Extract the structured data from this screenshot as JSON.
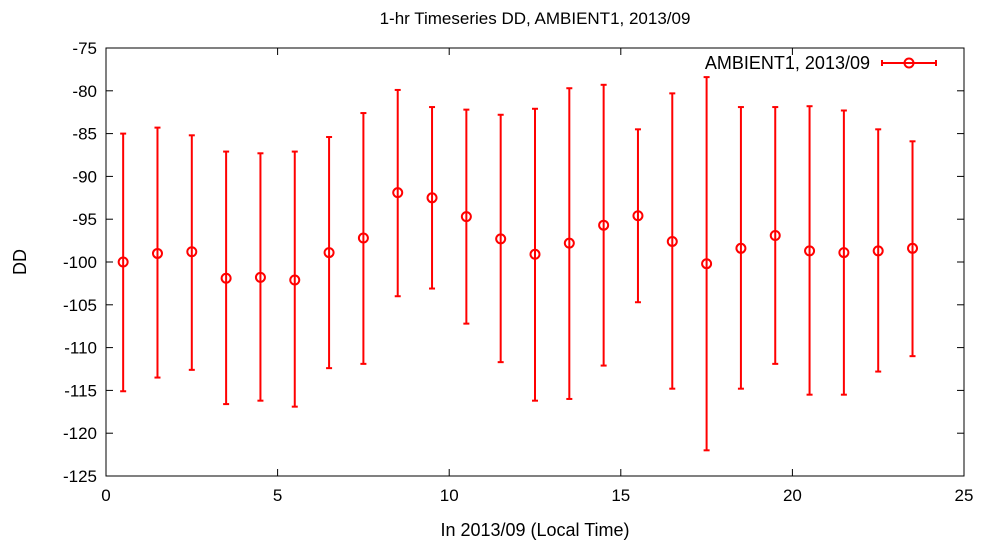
{
  "chart_data": {
    "type": "scatter",
    "title": "1-hr Timeseries DD, AMBIENT1, 2013/09",
    "xlabel": "In 2013/09 (Local Time)",
    "ylabel": "DD",
    "xlim": [
      0,
      25
    ],
    "ylim": [
      -125,
      -75
    ],
    "xticks": [
      0,
      5,
      10,
      15,
      20,
      25
    ],
    "yticks": [
      -125,
      -120,
      -115,
      -110,
      -105,
      -100,
      -95,
      -90,
      -85,
      -80,
      -75
    ],
    "grid": false,
    "legend_position": "top-right",
    "series": [
      {
        "name": "AMBIENT1, 2013/09",
        "color": "#ff0000",
        "marker": "circle",
        "error_bars": "vertical",
        "x": [
          0.5,
          1.5,
          2.5,
          3.5,
          4.5,
          5.5,
          6.5,
          7.5,
          8.5,
          9.5,
          10.5,
          11.5,
          12.5,
          13.5,
          14.5,
          15.5,
          16.5,
          17.5,
          18.5,
          19.5,
          20.5,
          21.5,
          22.5,
          23.5
        ],
        "y": [
          -100.0,
          -99.0,
          -98.8,
          -101.9,
          -101.8,
          -102.1,
          -98.9,
          -97.2,
          -91.9,
          -92.5,
          -94.7,
          -97.3,
          -99.1,
          -97.8,
          -95.7,
          -94.6,
          -97.6,
          -100.2,
          -98.4,
          -96.9,
          -98.7,
          -98.9,
          -98.7,
          -98.4
        ],
        "y_low": [
          -115.1,
          -113.5,
          -112.6,
          -116.6,
          -116.2,
          -116.9,
          -112.4,
          -111.9,
          -104.0,
          -103.1,
          -107.2,
          -111.7,
          -116.2,
          -116.0,
          -112.1,
          -104.7,
          -114.8,
          -122.0,
          -114.8,
          -111.9,
          -115.5,
          -115.5,
          -112.8,
          -111.0
        ],
        "y_high": [
          -85.0,
          -84.3,
          -85.2,
          -87.1,
          -87.3,
          -87.1,
          -85.4,
          -82.6,
          -79.9,
          -81.9,
          -82.2,
          -82.8,
          -82.1,
          -79.7,
          -79.3,
          -84.5,
          -80.3,
          -78.4,
          -81.9,
          -81.9,
          -81.8,
          -82.3,
          -84.5,
          -85.9
        ]
      }
    ]
  }
}
